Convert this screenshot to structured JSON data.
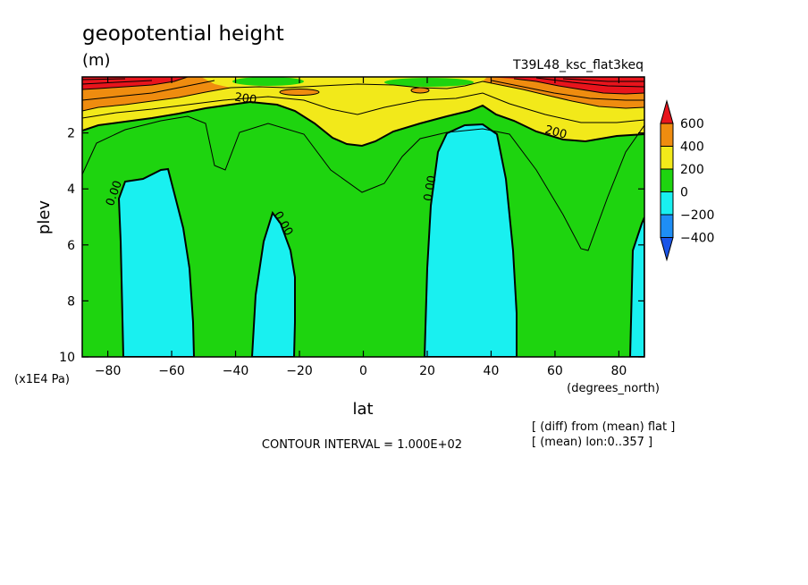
{
  "title": "geopotential height",
  "units": "(m)",
  "run_name": "T39L48_ksc_flat3keq",
  "contour_interval": "CONTOUR INTERVAL = 1.000E+02",
  "notes": [
    "[ (diff) from (mean) flat ]",
    "[ (mean) lon:0..357 ]"
  ],
  "chart_data": {
    "type": "heatmap",
    "xlabel": "lat",
    "x_units": "(degrees_north)",
    "ylabel": "plev",
    "y_units": "(x1E4 Pa)",
    "xlim": [
      -88,
      88
    ],
    "ylim": [
      10,
      0
    ],
    "xticks": [
      -80,
      -60,
      -40,
      -20,
      0,
      20,
      40,
      60,
      80
    ],
    "yticks": [
      2,
      4,
      6,
      8,
      10
    ],
    "contour_labels": [
      {
        "text": "200",
        "lat": -37,
        "plev": 0.9
      },
      {
        "text": "200",
        "lat": 60,
        "plev": 2.1
      },
      {
        "text": "0.00",
        "lat": -77,
        "plev": 4.2
      },
      {
        "text": "0.00",
        "lat": -26,
        "plev": 5.3
      },
      {
        "text": "0.00",
        "lat": 22,
        "plev": 4.0
      }
    ],
    "colorbar": {
      "levels": [
        "600",
        "400",
        "200",
        "0",
        "−200",
        "−400"
      ],
      "colors": [
        "#e8141c",
        "#ef8c0f",
        "#f2e91a",
        "#1ed40f",
        "#19f0f0",
        "#1e8ef5",
        "#1a55e8"
      ]
    },
    "grid": false
  }
}
